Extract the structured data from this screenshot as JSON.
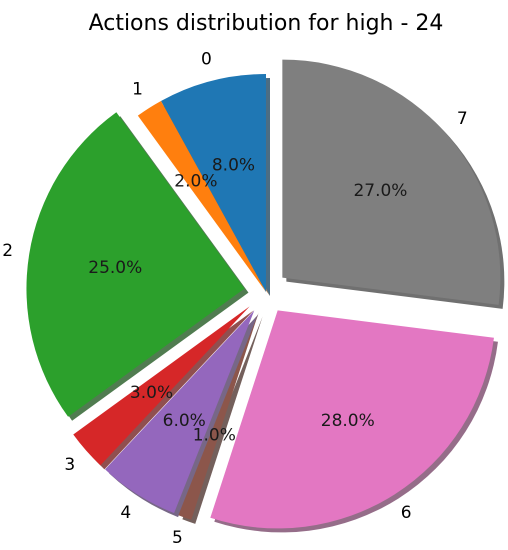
{
  "chart_data": {
    "type": "pie",
    "title": "Actions distribution for high - 24",
    "categories": [
      "0",
      "1",
      "2",
      "3",
      "4",
      "5",
      "6",
      "7"
    ],
    "values": [
      8.0,
      2.0,
      25.0,
      3.0,
      6.0,
      1.0,
      28.0,
      27.0
    ],
    "value_labels": [
      "8.0%",
      "2.0%",
      "25.0%",
      "3.0%",
      "6.0%",
      "1.0%",
      "28.0%",
      "27.0%"
    ],
    "colors": [
      "#1f77b4",
      "#ff7f0e",
      "#2ca02c",
      "#d62728",
      "#9467bd",
      "#8c564b",
      "#e377c2",
      "#7f7f7f"
    ],
    "exploded": [
      false,
      false,
      true,
      true,
      true,
      true,
      true,
      true
    ],
    "start_angle": 90,
    "direction": "counterclockwise",
    "shadow": true,
    "legend": "none"
  }
}
